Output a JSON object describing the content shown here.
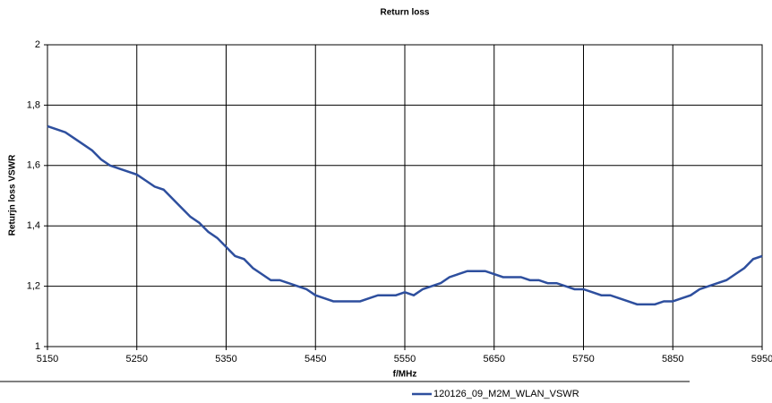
{
  "chart_data": {
    "type": "line",
    "title": "Return loss",
    "x_label": "f/MHz",
    "y_label": "Returjn loss VSWR",
    "x": [
      5150,
      5160,
      5170,
      5180,
      5190,
      5200,
      5210,
      5220,
      5230,
      5240,
      5250,
      5260,
      5270,
      5280,
      5290,
      5300,
      5310,
      5320,
      5330,
      5340,
      5350,
      5360,
      5370,
      5380,
      5390,
      5400,
      5410,
      5420,
      5430,
      5440,
      5450,
      5460,
      5470,
      5480,
      5490,
      5500,
      5510,
      5520,
      5530,
      5540,
      5550,
      5560,
      5570,
      5580,
      5590,
      5600,
      5610,
      5620,
      5630,
      5640,
      5650,
      5660,
      5670,
      5680,
      5690,
      5700,
      5710,
      5720,
      5730,
      5740,
      5750,
      5760,
      5770,
      5780,
      5790,
      5800,
      5810,
      5820,
      5830,
      5840,
      5850,
      5860,
      5870,
      5880,
      5890,
      5900,
      5910,
      5920,
      5930,
      5940,
      5950
    ],
    "series": [
      {
        "name": "120126_09_M2M_WLAN_VSWR",
        "color": "#2e4f9e",
        "values": [
          1.73,
          1.72,
          1.71,
          1.69,
          1.67,
          1.65,
          1.62,
          1.6,
          1.59,
          1.58,
          1.57,
          1.55,
          1.53,
          1.52,
          1.49,
          1.46,
          1.43,
          1.41,
          1.38,
          1.36,
          1.33,
          1.3,
          1.29,
          1.26,
          1.24,
          1.22,
          1.22,
          1.21,
          1.2,
          1.19,
          1.17,
          1.16,
          1.15,
          1.15,
          1.15,
          1.15,
          1.16,
          1.17,
          1.17,
          1.17,
          1.18,
          1.17,
          1.19,
          1.2,
          1.21,
          1.23,
          1.24,
          1.25,
          1.25,
          1.25,
          1.24,
          1.23,
          1.23,
          1.23,
          1.22,
          1.22,
          1.21,
          1.21,
          1.2,
          1.19,
          1.19,
          1.18,
          1.17,
          1.17,
          1.16,
          1.15,
          1.14,
          1.14,
          1.14,
          1.15,
          1.15,
          1.16,
          1.17,
          1.19,
          1.2,
          1.21,
          1.22,
          1.24,
          1.26,
          1.29,
          1.3
        ]
      }
    ],
    "xlim": [
      5150,
      5950
    ],
    "xticks": [
      5150,
      5250,
      5350,
      5450,
      5550,
      5650,
      5750,
      5850,
      5950
    ],
    "ylim": [
      1,
      2
    ],
    "yticks": [
      1,
      {
        "value": 1.2,
        "label": "1,2"
      },
      {
        "value": 1.4,
        "label": "1,4"
      },
      {
        "value": 1.6,
        "label": "1,6"
      },
      {
        "value": 1.8,
        "label": "1,8"
      },
      2
    ],
    "grid": true,
    "legend": "bottom"
  }
}
